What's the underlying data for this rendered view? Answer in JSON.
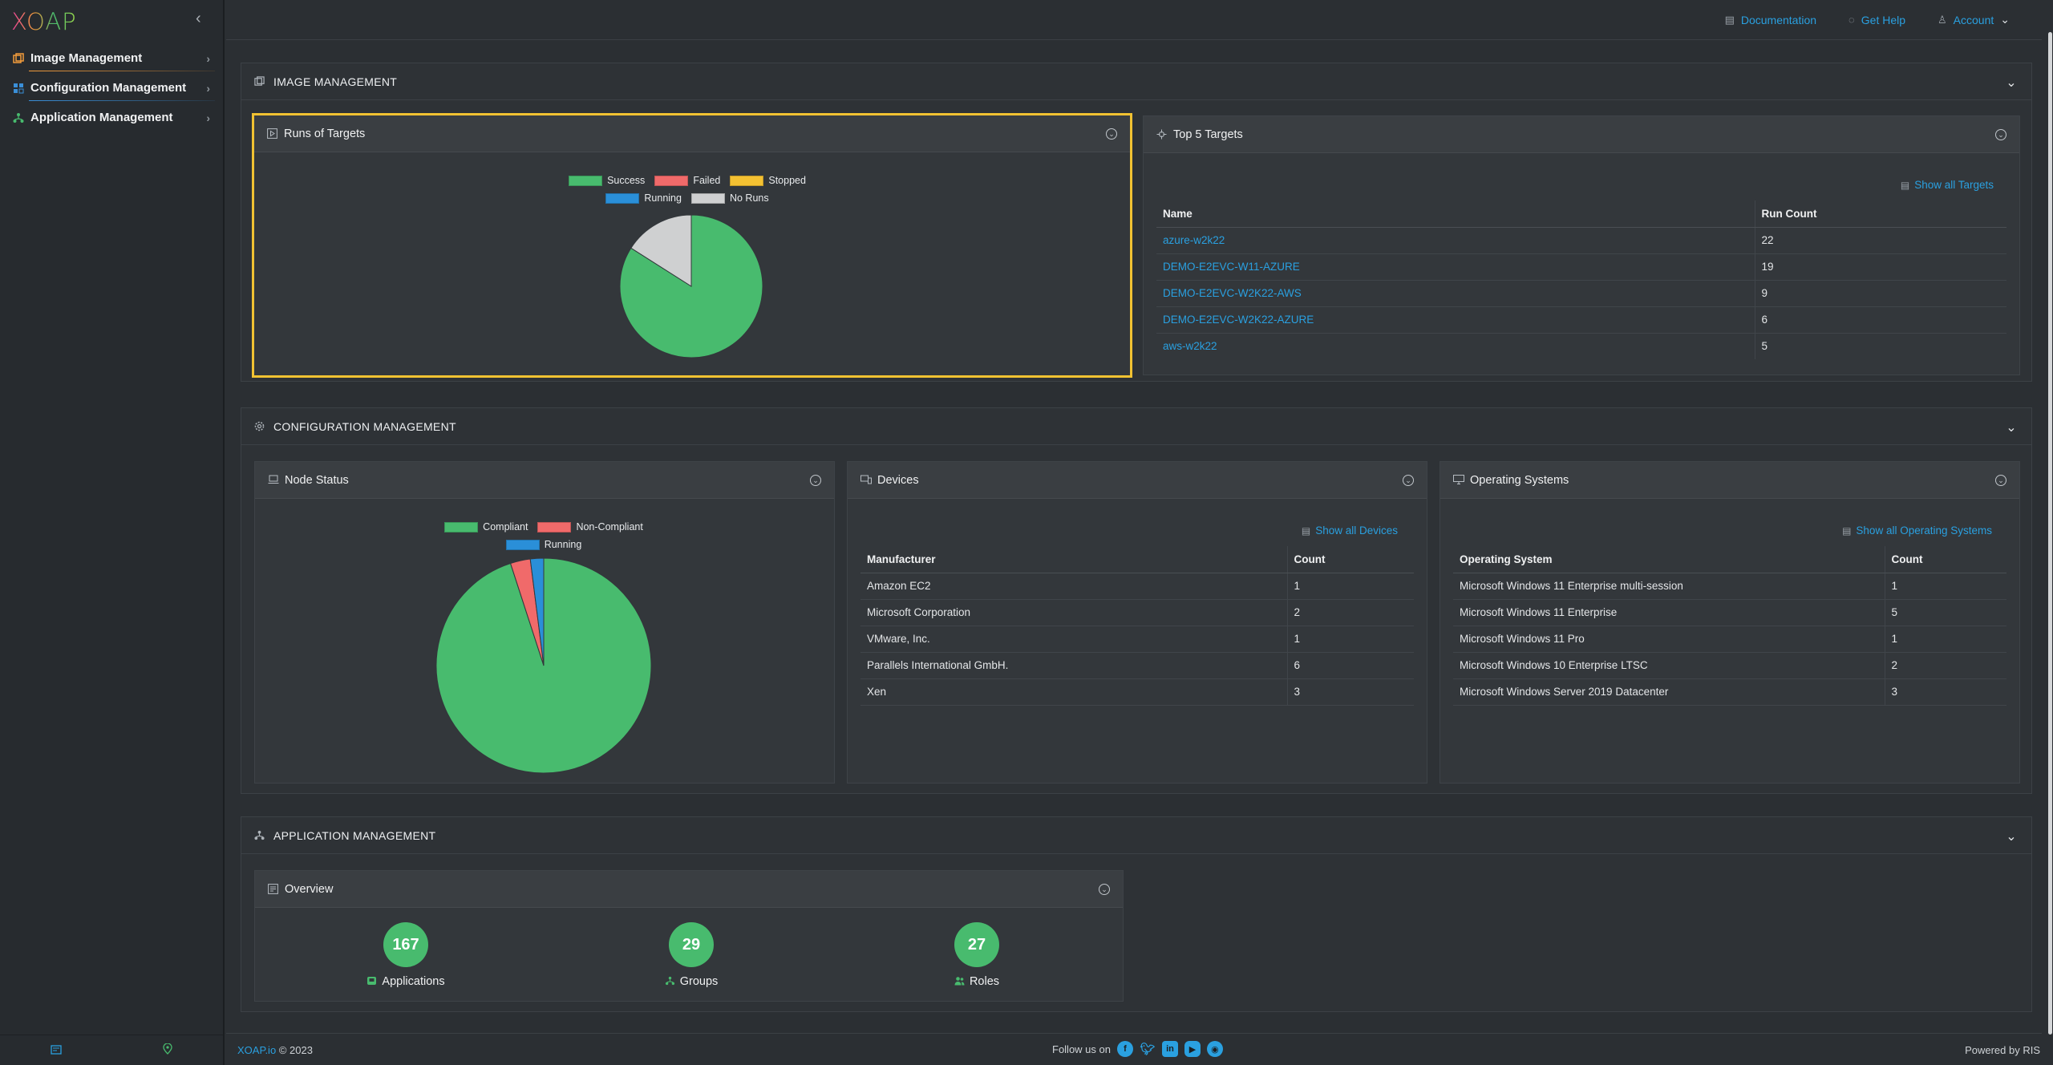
{
  "brand": {
    "logo_text": "XOAP"
  },
  "sidebar": {
    "items": [
      {
        "label": "Image Management",
        "color": "#f39c3c"
      },
      {
        "label": "Configuration Management",
        "color": "#3a8fd8"
      },
      {
        "label": "Application Management",
        "color": "#48bb6e"
      }
    ]
  },
  "topbar": {
    "documentation": "Documentation",
    "get_help": "Get Help",
    "account": "Account"
  },
  "image_management": {
    "title": "IMAGE MANAGEMENT",
    "runs_of_targets": {
      "title": "Runs of Targets",
      "legend": [
        "Success",
        "Failed",
        "Stopped",
        "Running",
        "No Runs"
      ]
    },
    "top5": {
      "title": "Top 5 Targets",
      "show_all": "Show all Targets",
      "columns": [
        "Name",
        "Run Count"
      ],
      "rows": [
        [
          "azure-w2k22",
          "22"
        ],
        [
          "DEMO-E2EVC-W11-AZURE",
          "19"
        ],
        [
          "DEMO-E2EVC-W2K22-AWS",
          "9"
        ],
        [
          "DEMO-E2EVC-W2K22-AZURE",
          "6"
        ],
        [
          "aws-w2k22",
          "5"
        ]
      ]
    }
  },
  "configuration_management": {
    "title": "CONFIGURATION MANAGEMENT",
    "node_status": {
      "title": "Node Status",
      "legend": [
        "Compliant",
        "Non-Compliant",
        "Running"
      ]
    },
    "devices": {
      "title": "Devices",
      "show_all": "Show all Devices",
      "columns": [
        "Manufacturer",
        "Count"
      ],
      "rows": [
        [
          "Amazon EC2",
          "1"
        ],
        [
          "Microsoft Corporation",
          "2"
        ],
        [
          "VMware, Inc.",
          "1"
        ],
        [
          "Parallels International GmbH.",
          "6"
        ],
        [
          "Xen",
          "3"
        ]
      ]
    },
    "operating_systems": {
      "title": "Operating Systems",
      "show_all": "Show all Operating Systems",
      "columns": [
        "Operating System",
        "Count"
      ],
      "rows": [
        [
          "Microsoft Windows 11 Enterprise multi-session",
          "1"
        ],
        [
          "Microsoft Windows 11 Enterprise",
          "5"
        ],
        [
          "Microsoft Windows 11 Pro",
          "1"
        ],
        [
          "Microsoft Windows 10 Enterprise LTSC",
          "2"
        ],
        [
          "Microsoft Windows Server 2019 Datacenter",
          "3"
        ]
      ]
    }
  },
  "application_management": {
    "title": "APPLICATION MANAGEMENT",
    "overview": {
      "title": "Overview",
      "stats": [
        {
          "value": "167",
          "label": "Applications"
        },
        {
          "value": "29",
          "label": "Groups"
        },
        {
          "value": "27",
          "label": "Roles"
        }
      ]
    }
  },
  "footer": {
    "copyright_link": "XOAP.io",
    "copyright_text": "© 2023",
    "follow": "Follow us on",
    "powered": "Powered by RIS"
  },
  "chart_data": [
    {
      "type": "pie",
      "legend": [
        "Success",
        "Failed",
        "Stopped",
        "Running",
        "No Runs"
      ],
      "values": [
        84,
        0,
        0,
        0,
        16
      ],
      "colors": [
        "#48bb6e",
        "#f06a6a",
        "#f4c132",
        "#2a8fd8",
        "#cfd0d1"
      ]
    },
    {
      "type": "pie",
      "legend": [
        "Compliant",
        "Non-Compliant",
        "Running"
      ],
      "values": [
        95,
        3,
        2
      ],
      "colors": [
        "#48bb6e",
        "#f06a6a",
        "#2a8fd8"
      ]
    }
  ]
}
